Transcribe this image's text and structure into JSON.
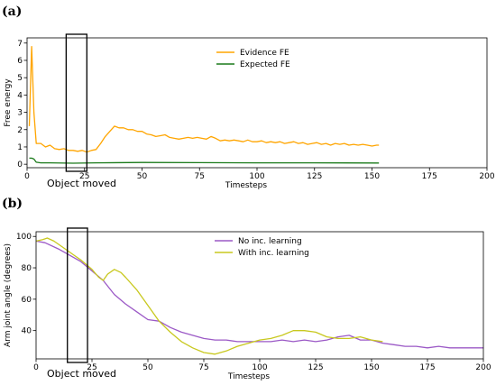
{
  "chart_data": [
    {
      "panel_label": "(a)",
      "type": "line",
      "xlabel": "Timesteps",
      "ylabel": "Free energy",
      "xlim": [
        0,
        200
      ],
      "ylim": [
        -0.2,
        7.3
      ],
      "xticks": [
        0,
        25,
        50,
        75,
        100,
        125,
        150,
        175,
        200
      ],
      "yticks": [
        0,
        1,
        2,
        3,
        4,
        5,
        6,
        7
      ],
      "legend_position": "top-center",
      "annotation": {
        "text": "Object moved",
        "box_x": [
          17,
          26
        ]
      },
      "series": [
        {
          "name": "Evidence FE",
          "color": "#ffa500",
          "x": [
            1,
            2,
            3,
            4,
            6,
            8,
            10,
            12,
            14,
            16,
            18,
            20,
            22,
            24,
            26,
            28,
            30,
            32,
            34,
            36,
            38,
            40,
            42,
            44,
            46,
            48,
            50,
            52,
            54,
            56,
            58,
            60,
            62,
            64,
            66,
            68,
            70,
            72,
            74,
            76,
            78,
            80,
            82,
            84,
            86,
            88,
            90,
            92,
            94,
            96,
            98,
            100,
            102,
            104,
            106,
            108,
            110,
            112,
            114,
            116,
            118,
            120,
            122,
            124,
            126,
            128,
            130,
            132,
            134,
            136,
            138,
            140,
            142,
            144,
            146,
            148,
            150,
            152,
            153
          ],
          "y": [
            2.2,
            6.8,
            3.0,
            1.2,
            1.2,
            1.0,
            1.1,
            0.9,
            0.85,
            0.9,
            0.8,
            0.8,
            0.75,
            0.8,
            0.7,
            0.8,
            0.85,
            1.2,
            1.6,
            1.9,
            2.2,
            2.1,
            2.1,
            2.0,
            2.0,
            1.9,
            1.9,
            1.75,
            1.7,
            1.6,
            1.65,
            1.7,
            1.55,
            1.5,
            1.45,
            1.5,
            1.55,
            1.5,
            1.55,
            1.5,
            1.45,
            1.6,
            1.5,
            1.35,
            1.4,
            1.35,
            1.4,
            1.35,
            1.3,
            1.4,
            1.3,
            1.3,
            1.35,
            1.25,
            1.3,
            1.25,
            1.3,
            1.2,
            1.25,
            1.3,
            1.2,
            1.25,
            1.15,
            1.2,
            1.25,
            1.15,
            1.2,
            1.1,
            1.2,
            1.15,
            1.2,
            1.1,
            1.15,
            1.1,
            1.15,
            1.1,
            1.05,
            1.1,
            1.1
          ]
        },
        {
          "name": "Expected FE",
          "color": "#1a7a1a",
          "x": [
            1,
            2,
            3,
            4,
            6,
            10,
            20,
            30,
            50,
            75,
            100,
            125,
            153
          ],
          "y": [
            0.35,
            0.35,
            0.3,
            0.12,
            0.08,
            0.08,
            0.06,
            0.08,
            0.1,
            0.09,
            0.08,
            0.08,
            0.07
          ]
        }
      ]
    },
    {
      "panel_label": "(b)",
      "type": "line",
      "xlabel": "Timesteps",
      "ylabel": "Arm joint angle (degrees)",
      "xlim": [
        0,
        200
      ],
      "ylim": [
        22,
        103
      ],
      "xticks": [
        0,
        25,
        50,
        75,
        100,
        125,
        150,
        175,
        200
      ],
      "yticks": [
        40,
        60,
        80,
        100
      ],
      "legend_position": "top-center",
      "annotation": {
        "text": "Object moved",
        "box_x": [
          14,
          23
        ]
      },
      "series": [
        {
          "name": "No inc. learning",
          "color": "#9b59c6",
          "x": [
            0,
            4,
            10,
            15,
            20,
            25,
            30,
            35,
            40,
            45,
            50,
            55,
            60,
            65,
            70,
            75,
            80,
            85,
            90,
            95,
            100,
            105,
            110,
            115,
            120,
            125,
            130,
            135,
            140,
            145,
            150,
            155,
            160,
            165,
            170,
            175,
            180,
            185,
            190,
            195,
            200
          ],
          "y": [
            97,
            96,
            92,
            88,
            84,
            78,
            72,
            63,
            57,
            52,
            47,
            46,
            42,
            39,
            37,
            35,
            34,
            34,
            33,
            33,
            33,
            33,
            34,
            33,
            34,
            33,
            34,
            36,
            37,
            34,
            34,
            32,
            31,
            30,
            30,
            29,
            30,
            29,
            29,
            29,
            29
          ]
        },
        {
          "name": "With inc. learning",
          "color": "#c8c81e",
          "x": [
            0,
            3,
            5,
            8,
            12,
            16,
            20,
            25,
            28,
            30,
            32,
            35,
            38,
            40,
            45,
            50,
            55,
            60,
            65,
            70,
            75,
            80,
            85,
            90,
            95,
            100,
            105,
            110,
            115,
            120,
            125,
            130,
            135,
            140,
            145,
            150,
            155
          ],
          "y": [
            97,
            98,
            99,
            97,
            93,
            89,
            85,
            79,
            74,
            72,
            76,
            79,
            77,
            74,
            66,
            56,
            46,
            39,
            33,
            29,
            26,
            25,
            27,
            30,
            32,
            34,
            35,
            37,
            40,
            40,
            39,
            36,
            35,
            35,
            36,
            34,
            33
          ]
        }
      ]
    }
  ]
}
